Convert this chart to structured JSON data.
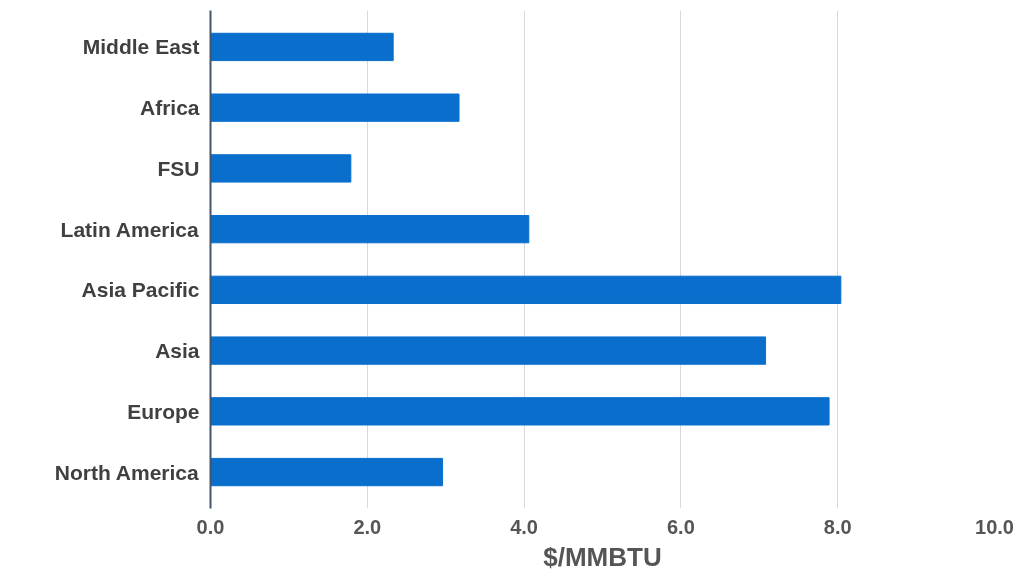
{
  "chart_data": {
    "type": "bar",
    "orientation": "horizontal",
    "xlabel": "$/MMBTU",
    "categories": [
      "Middle East",
      "Africa",
      "FSU",
      "Latin America",
      "Asia Pacific",
      "Asia",
      "Europe",
      "North America"
    ],
    "values": [
      2.33,
      3.17,
      1.79,
      4.06,
      8.04,
      7.08,
      7.89,
      2.96
    ],
    "color": "#0a6fcc",
    "xlim": [
      0,
      10
    ],
    "xticks": [
      {
        "value": 0,
        "label": "0.0"
      },
      {
        "value": 2,
        "label": "2.0"
      },
      {
        "value": 4,
        "label": "4.0"
      },
      {
        "value": 6,
        "label": "6.0"
      },
      {
        "value": 8,
        "label": "8.0"
      },
      {
        "value": 10,
        "label": "10.0"
      }
    ],
    "grid": "x"
  }
}
